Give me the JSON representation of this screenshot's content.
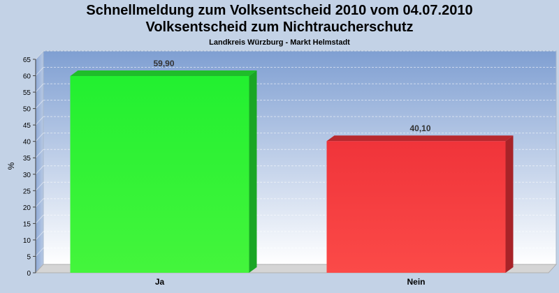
{
  "header": {
    "title": "Schnellmeldung zum Volksentscheid 2010 vom 04.07.2010",
    "subtitle": "Volksentscheid zum Nichtraucherschutz",
    "region": "Landkreis Würzburg - Markt Helmstadt"
  },
  "chart_data": {
    "type": "bar",
    "title": "Schnellmeldung zum Volksentscheid 2010 vom 04.07.2010",
    "subtitle": "Volksentscheid zum Nichtraucherschutz",
    "ylabel": "%",
    "xlabel": "",
    "categories": [
      "Ja",
      "Nein"
    ],
    "values": [
      59.9,
      40.1
    ],
    "value_labels": [
      "59,90",
      "40,10"
    ],
    "colors": [
      "#2ef03a",
      "#f23a3e"
    ],
    "ylim": [
      0,
      65
    ],
    "yticks": [
      0,
      5,
      10,
      15,
      20,
      25,
      30,
      35,
      40,
      45,
      50,
      55,
      60,
      65
    ],
    "grid": true,
    "legend": "none"
  }
}
